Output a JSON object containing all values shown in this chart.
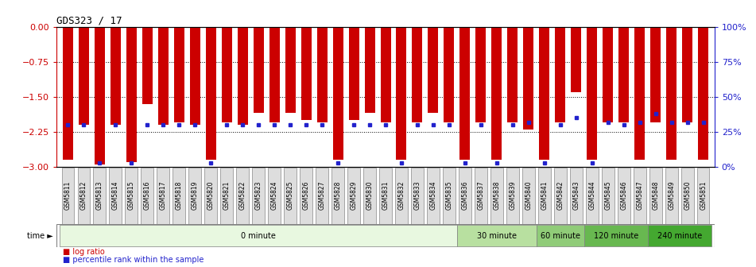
{
  "title": "GDS323 / 17",
  "samples": [
    "GSM5811",
    "GSM5812",
    "GSM5813",
    "GSM5814",
    "GSM5815",
    "GSM5816",
    "GSM5817",
    "GSM5818",
    "GSM5819",
    "GSM5820",
    "GSM5821",
    "GSM5822",
    "GSM5823",
    "GSM5824",
    "GSM5825",
    "GSM5826",
    "GSM5827",
    "GSM5828",
    "GSM5829",
    "GSM5830",
    "GSM5831",
    "GSM5832",
    "GSM5833",
    "GSM5834",
    "GSM5835",
    "GSM5836",
    "GSM5837",
    "GSM5838",
    "GSM5839",
    "GSM5840",
    "GSM5841",
    "GSM5842",
    "GSM5843",
    "GSM5844",
    "GSM5845",
    "GSM5846",
    "GSM5847",
    "GSM5848",
    "GSM5849",
    "GSM5850",
    "GSM5851"
  ],
  "log_ratio": [
    -2.85,
    -2.1,
    -2.95,
    -2.1,
    -2.9,
    -1.65,
    -2.1,
    -2.05,
    -2.1,
    -2.85,
    -2.05,
    -2.1,
    -1.85,
    -2.05,
    -1.85,
    -2.0,
    -2.05,
    -2.85,
    -2.0,
    -1.85,
    -2.05,
    -2.85,
    -2.05,
    -1.85,
    -2.05,
    -2.85,
    -2.05,
    -2.85,
    -2.05,
    -2.2,
    -2.85,
    -2.05,
    -1.4,
    -2.85,
    -2.05,
    -2.05,
    -2.85,
    -2.05,
    -2.85,
    -2.05,
    -2.85
  ],
  "percentile": [
    30,
    30,
    3,
    30,
    3,
    30,
    30,
    30,
    30,
    3,
    30,
    30,
    30,
    30,
    30,
    30,
    30,
    3,
    30,
    30,
    30,
    3,
    30,
    30,
    30,
    3,
    30,
    3,
    30,
    32,
    3,
    30,
    35,
    3,
    32,
    30,
    32,
    38,
    32,
    32,
    32
  ],
  "ylim_left": [
    -3.0,
    0.0
  ],
  "ylim_right": [
    0,
    100
  ],
  "yticks_left": [
    0,
    -0.75,
    -1.5,
    -2.25,
    -3.0
  ],
  "yticks_right": [
    0,
    25,
    50,
    75,
    100
  ],
  "bar_color": "#cc0000",
  "dot_color": "#2222cc",
  "time_groups": [
    {
      "label": "0 minute",
      "start": 0,
      "end": 25,
      "color": "#e8f8e0"
    },
    {
      "label": "30 minute",
      "start": 25,
      "end": 30,
      "color": "#b8e0a0"
    },
    {
      "label": "60 minute",
      "start": 30,
      "end": 33,
      "color": "#90cc78"
    },
    {
      "label": "120 minute",
      "start": 33,
      "end": 37,
      "color": "#68b850"
    },
    {
      "label": "240 minute",
      "start": 37,
      "end": 41,
      "color": "#44a830"
    }
  ],
  "left_axis_color": "#cc0000",
  "right_axis_color": "#2222cc",
  "legend_log_ratio_color": "#cc0000",
  "legend_percentile_color": "#2222cc",
  "chart_bg": "#ffffff",
  "xlabel_bg": "#dddddd",
  "xlabel_border": "#888888"
}
